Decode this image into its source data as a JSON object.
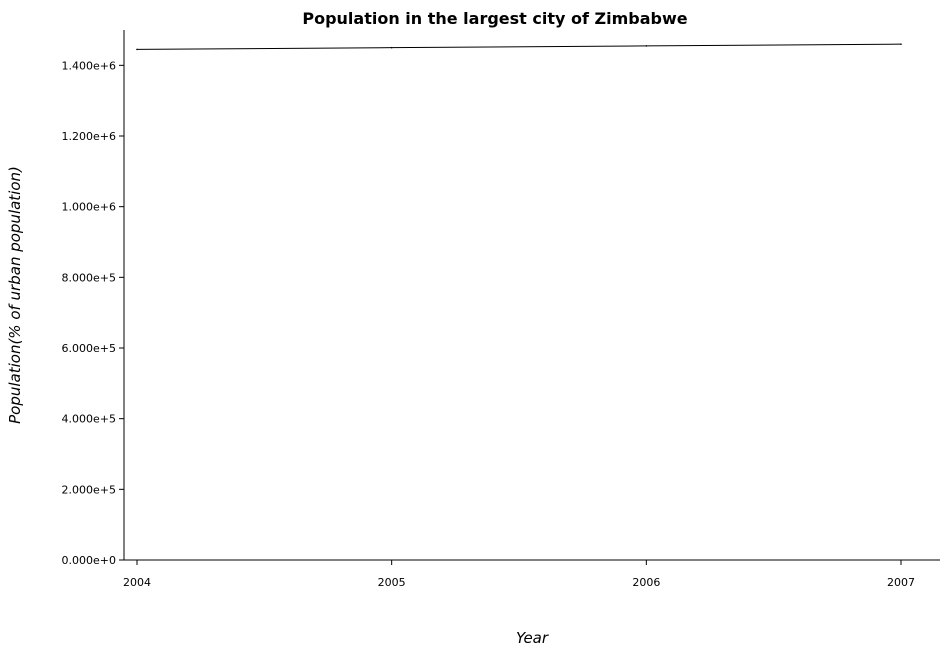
{
  "chart_data": {
    "type": "line",
    "title": "Population in the largest city of Zimbabwe",
    "xlabel": "Year",
    "ylabel": "Population(% of urban population)",
    "categories": [
      "2004",
      "2005",
      "2006",
      "2007"
    ],
    "series": [
      {
        "values": [
          1445000,
          1450000,
          1455000,
          1460000
        ],
        "color": "#000000"
      }
    ],
    "ylim": [
      0,
      1500000
    ],
    "yticks": [
      {
        "value": 0,
        "label": "0.000e+0"
      },
      {
        "value": 200000,
        "label": "2.000e+5"
      },
      {
        "value": 400000,
        "label": "4.000e+5"
      },
      {
        "value": 600000,
        "label": "6.000e+5"
      },
      {
        "value": 800000,
        "label": "8.000e+5"
      },
      {
        "value": 1000000,
        "label": "1.000e+6"
      },
      {
        "value": 1200000,
        "label": "1.200e+6"
      },
      {
        "value": 1400000,
        "label": "1.400e+6"
      }
    ],
    "grid": false,
    "legend": "none"
  }
}
